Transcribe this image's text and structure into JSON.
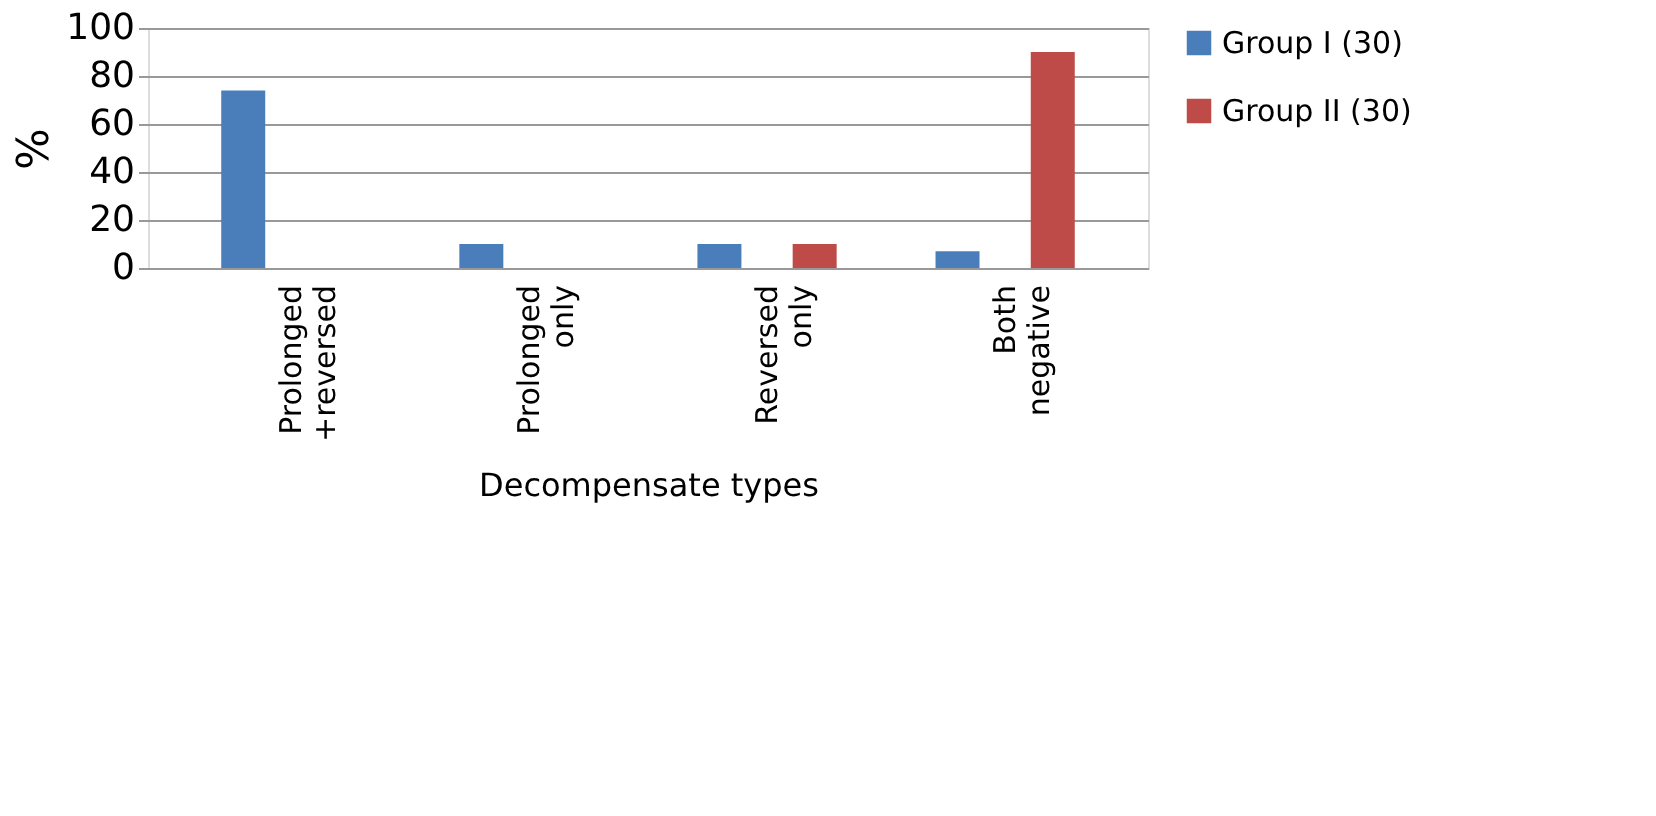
{
  "chart_data": {
    "type": "bar",
    "xlabel": "Decompensate types",
    "ylabel": "%",
    "categories": [
      "Prolonged +reversed",
      "Prolonged only",
      "Reversed only",
      "Both negative"
    ],
    "series": [
      {
        "name": "Group I (30)",
        "color": "#4a7ebb",
        "values": [
          74,
          10,
          10,
          7
        ]
      },
      {
        "name": "Group II (30)",
        "color": "#be4b48",
        "values": [
          0,
          0,
          10,
          90
        ]
      }
    ],
    "ylim": [
      0,
      100
    ],
    "yticks": [
      0,
      20,
      40,
      60,
      80,
      100
    ],
    "grid": "y",
    "legend": "right"
  }
}
